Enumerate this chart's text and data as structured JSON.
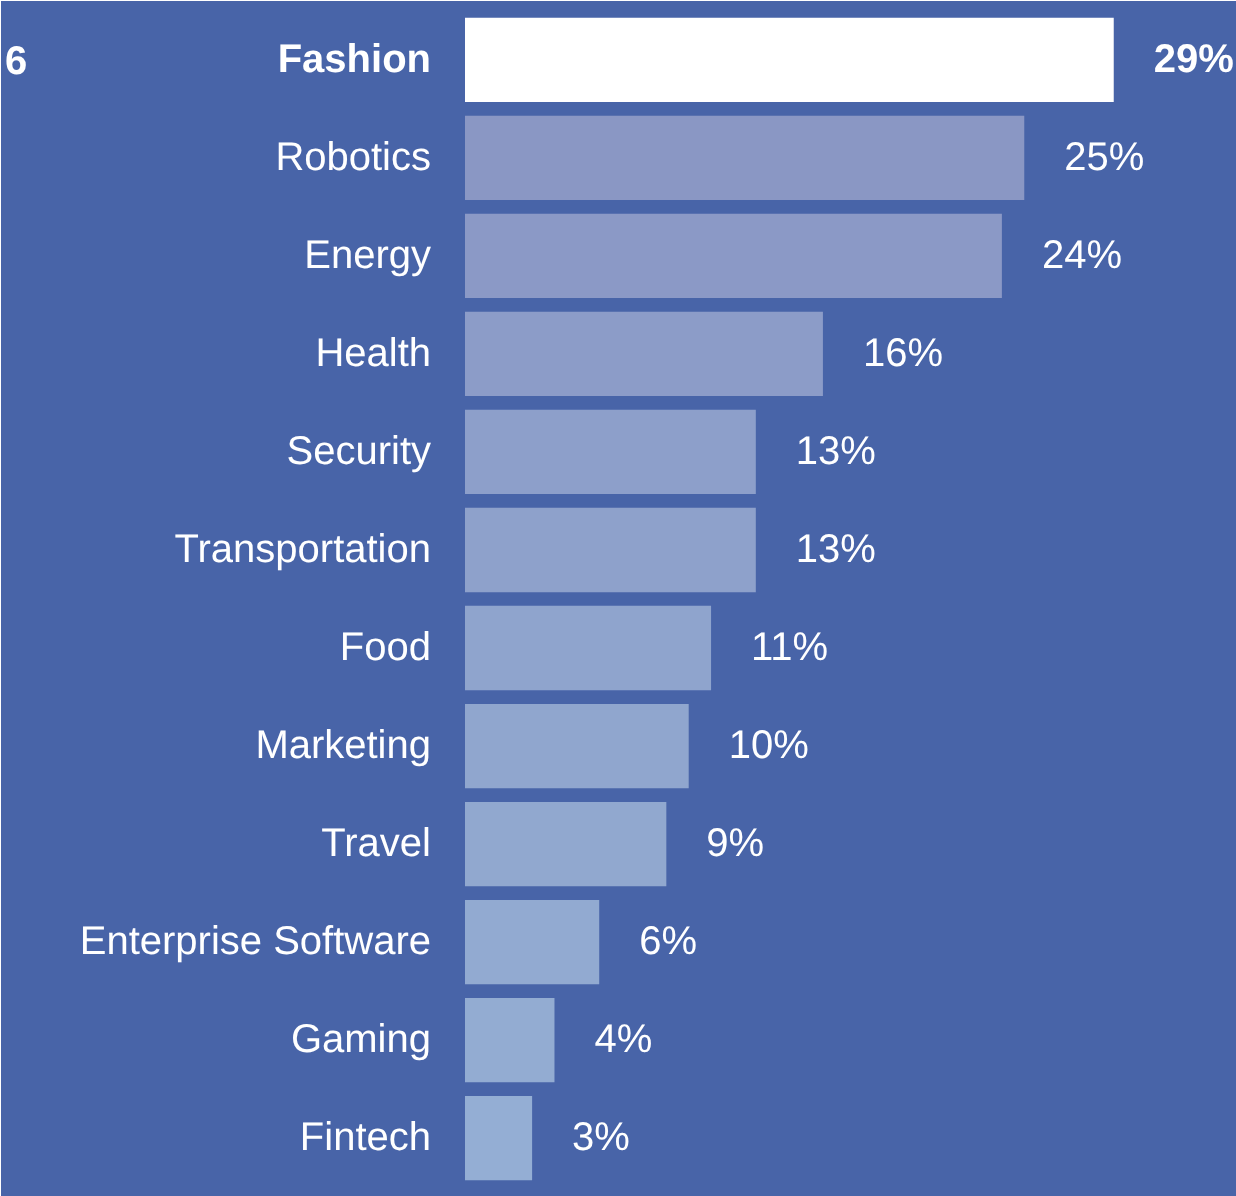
{
  "chart_data": {
    "type": "bar",
    "orientation": "horizontal",
    "categories": [
      "Fashion",
      "Robotics",
      "Energy",
      "Health",
      "Security",
      "Transportation",
      "Food",
      "Marketing",
      "Travel",
      "Enterprise Software",
      "Gaming",
      "Fintech"
    ],
    "values": [
      29,
      25,
      24,
      16,
      13,
      13,
      11,
      10,
      9,
      6,
      4,
      3
    ],
    "value_labels": [
      "29%",
      "25%",
      "24%",
      "16%",
      "13%",
      "13%",
      "11%",
      "10%",
      "9%",
      "6%",
      "4%",
      "3%"
    ],
    "colors": [
      "#ffffff",
      "#8a97c4",
      "#8b99c6",
      "#8c9cc8",
      "#8d9fca",
      "#8ea1cb",
      "#8fa4cd",
      "#90a6ce",
      "#91a8cf",
      "#92aad1",
      "#93acd2",
      "#94aed4"
    ],
    "annotations": [
      "6"
    ]
  }
}
